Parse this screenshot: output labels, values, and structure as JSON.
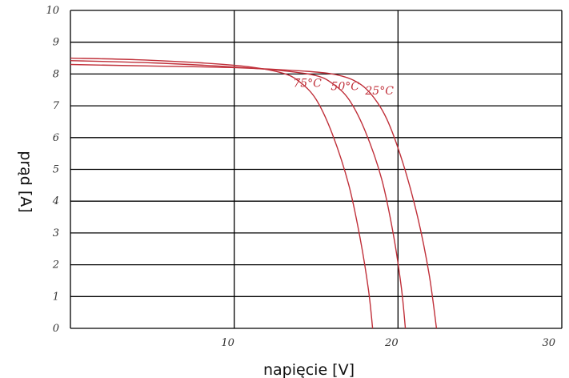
{
  "chart_data": {
    "type": "line",
    "title": "",
    "xlabel": "napięcie [V]",
    "ylabel": "prąd [A]",
    "xlim": [
      0,
      30
    ],
    "ylim": [
      0,
      10
    ],
    "xticks": [
      10,
      20,
      30
    ],
    "yticks": [
      0,
      1,
      2,
      3,
      4,
      5,
      6,
      7,
      8,
      9,
      10
    ],
    "grid": true,
    "color": "#c0303a",
    "series": [
      {
        "name": "75°C",
        "label_at": [
          13.6,
          7.6
        ],
        "points": [
          [
            0,
            8.5
          ],
          [
            4,
            8.45
          ],
          [
            8,
            8.35
          ],
          [
            11,
            8.22
          ],
          [
            13,
            8.02
          ],
          [
            14,
            7.75
          ],
          [
            15,
            7.2
          ],
          [
            16,
            6.1
          ],
          [
            17,
            4.5
          ],
          [
            17.7,
            2.8
          ],
          [
            18.2,
            1.2
          ],
          [
            18.45,
            0
          ]
        ]
      },
      {
        "name": "50°C",
        "label_at": [
          15.9,
          7.5
        ],
        "points": [
          [
            0,
            8.42
          ],
          [
            5,
            8.35
          ],
          [
            10,
            8.22
          ],
          [
            13,
            8.1
          ],
          [
            15,
            7.95
          ],
          [
            16,
            7.7
          ],
          [
            17,
            7.2
          ],
          [
            18,
            6.2
          ],
          [
            19,
            4.7
          ],
          [
            19.7,
            3.0
          ],
          [
            20.2,
            1.3
          ],
          [
            20.45,
            0
          ]
        ]
      },
      {
        "name": "25°C",
        "label_at": [
          18.0,
          7.35
        ],
        "points": [
          [
            0,
            8.3
          ],
          [
            5,
            8.25
          ],
          [
            10,
            8.2
          ],
          [
            14,
            8.1
          ],
          [
            16,
            8.0
          ],
          [
            17.3,
            7.8
          ],
          [
            18.3,
            7.4
          ],
          [
            19.3,
            6.6
          ],
          [
            20.3,
            5.2
          ],
          [
            21.2,
            3.5
          ],
          [
            21.9,
            1.7
          ],
          [
            22.35,
            0
          ]
        ]
      }
    ]
  }
}
